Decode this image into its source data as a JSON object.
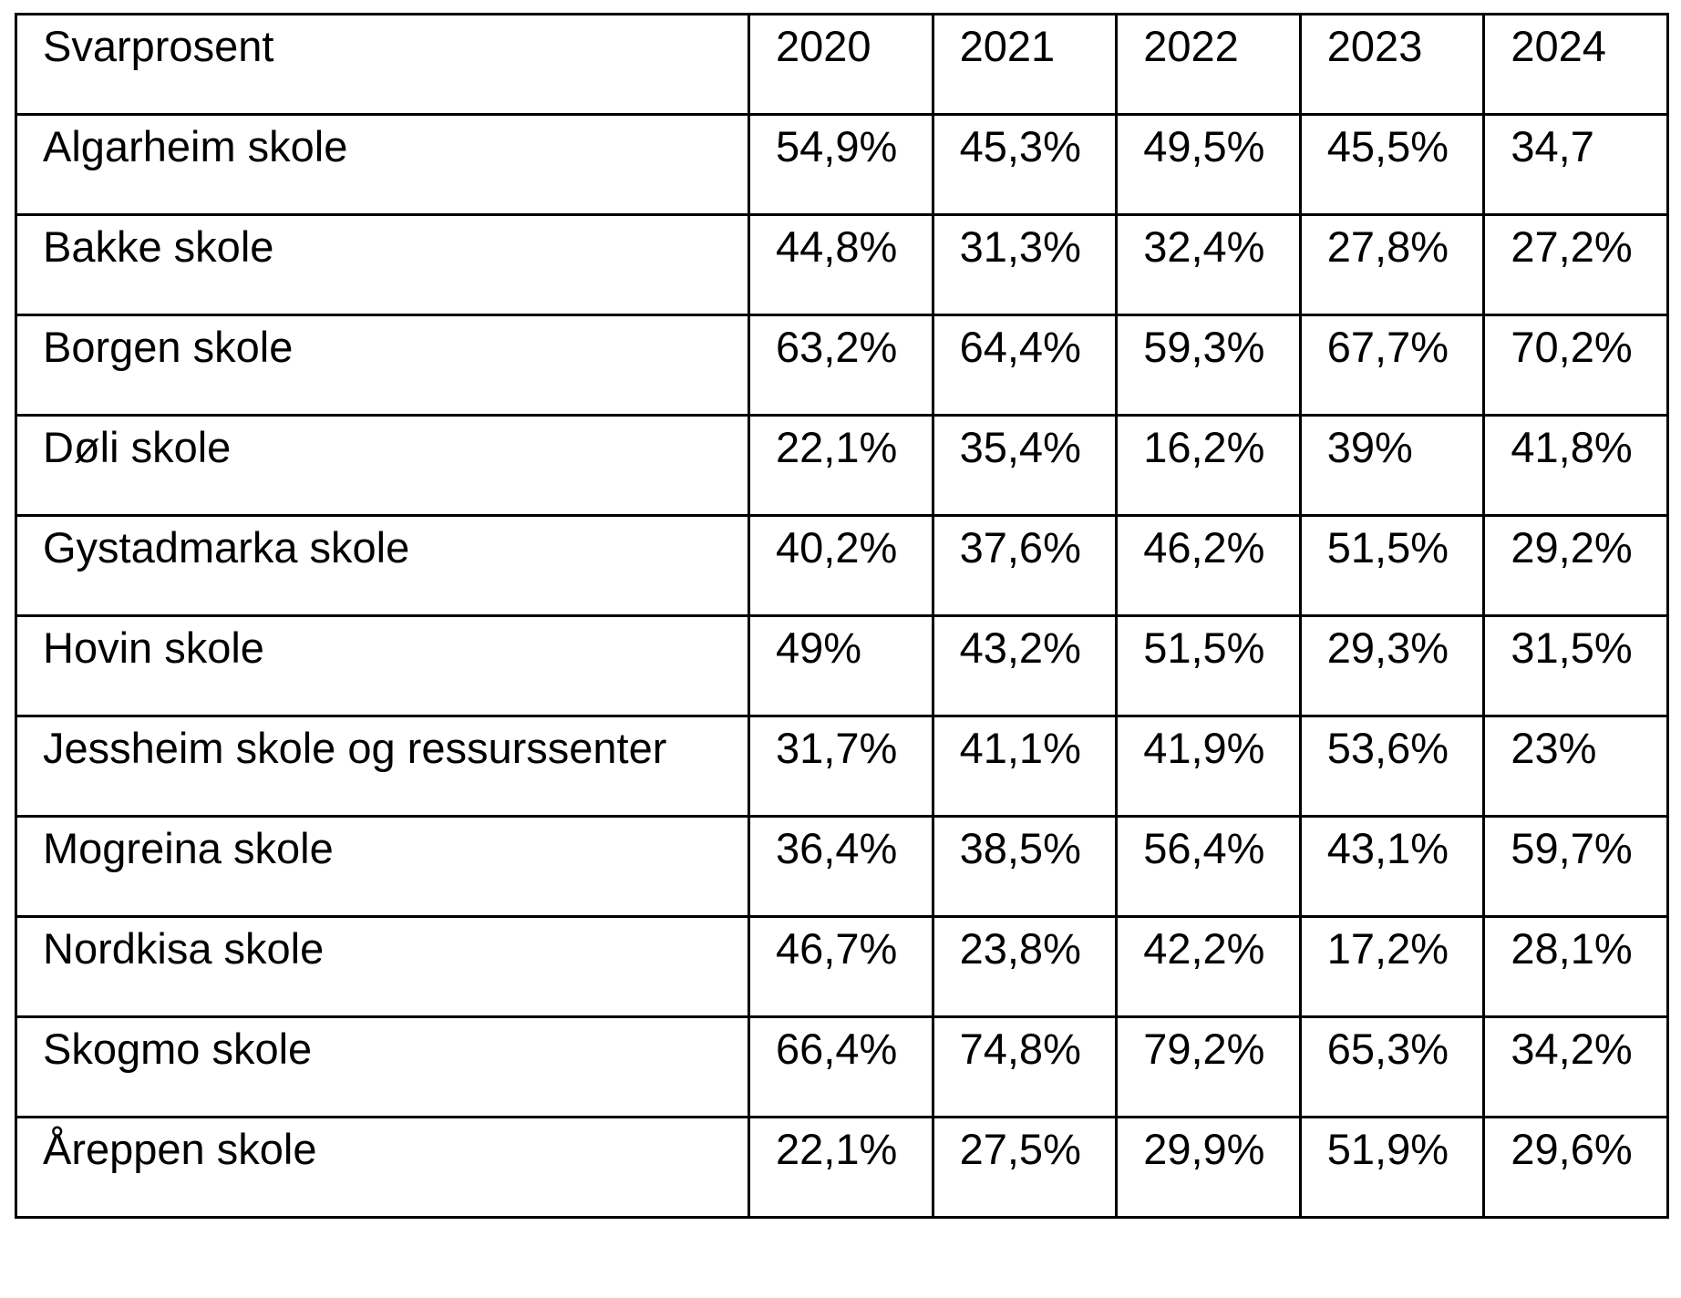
{
  "table": {
    "columns": [
      "Svarprosent",
      "2020",
      "2021",
      "2022",
      "2023",
      "2024"
    ],
    "rows": [
      [
        "Algarheim skole",
        "54,9%",
        "45,3%",
        "49,5%",
        "45,5%",
        "34,7"
      ],
      [
        "Bakke skole",
        "44,8%",
        "31,3%",
        "32,4%",
        "27,8%",
        "27,2%"
      ],
      [
        "Borgen skole",
        "63,2%",
        "64,4%",
        "59,3%",
        "67,7%",
        "70,2%"
      ],
      [
        "Døli skole",
        "22,1%",
        "35,4%",
        "16,2%",
        "39%",
        "41,8%"
      ],
      [
        "Gystadmarka skole",
        "40,2%",
        "37,6%",
        "46,2%",
        "51,5%",
        "29,2%"
      ],
      [
        "Hovin skole",
        "49%",
        "43,2%",
        "51,5%",
        "29,3%",
        "31,5%"
      ],
      [
        "Jessheim skole og ressurssenter",
        "31,7%",
        "41,1%",
        "41,9%",
        "53,6%",
        "23%"
      ],
      [
        "Mogreina skole",
        "36,4%",
        "38,5%",
        "56,4%",
        "43,1%",
        "59,7%"
      ],
      [
        "Nordkisa skole",
        "46,7%",
        "23,8%",
        "42,2%",
        "17,2%",
        "28,1%"
      ],
      [
        "Skogmo skole",
        "66,4%",
        "74,8%",
        "79,2%",
        "65,3%",
        "34,2%"
      ],
      [
        "Åreppen skole",
        "22,1%",
        "27,5%",
        "29,9%",
        "51,9%",
        "29,6%"
      ]
    ]
  }
}
